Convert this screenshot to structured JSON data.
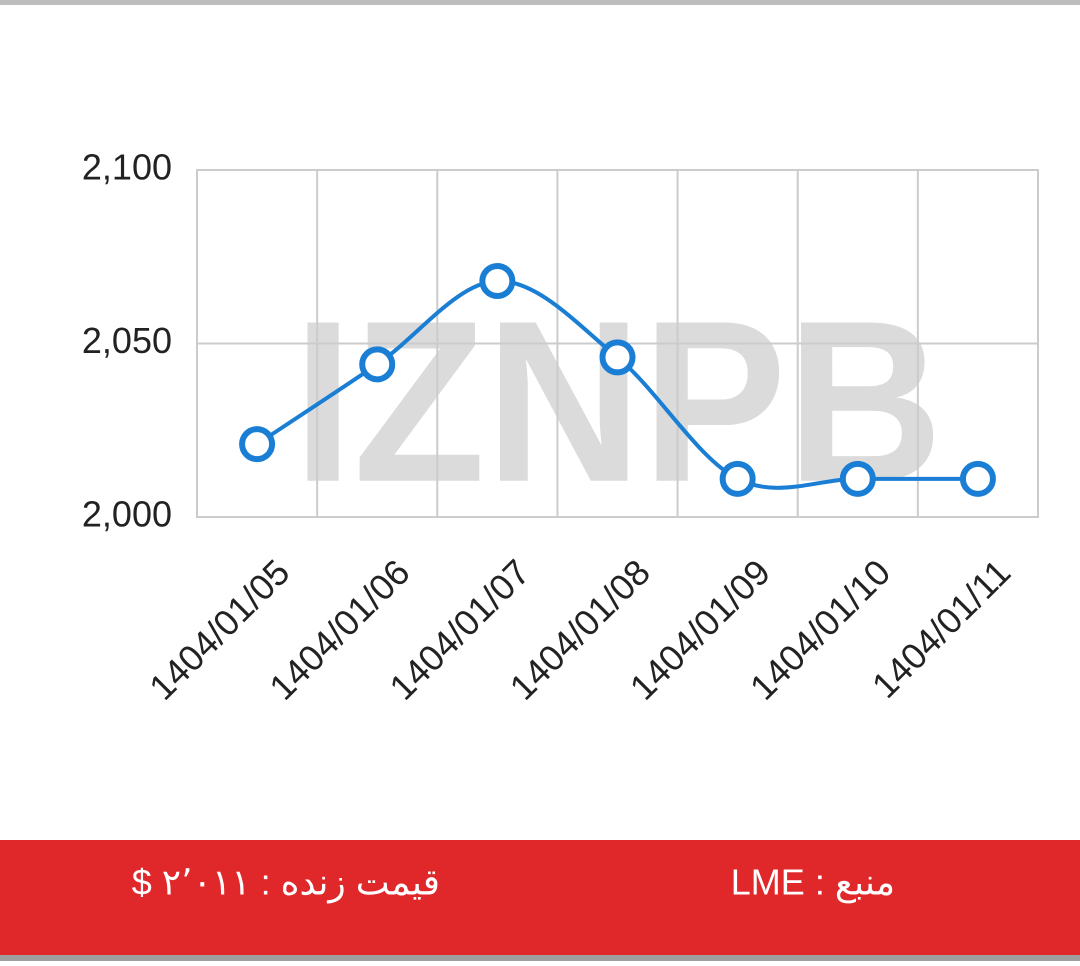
{
  "chart_data": {
    "type": "line",
    "categories": [
      "1404/01/05",
      "1404/01/06",
      "1404/01/07",
      "1404/01/08",
      "1404/01/09",
      "1404/01/10",
      "1404/01/11"
    ],
    "values": [
      2021,
      2044,
      2068,
      2046,
      2011,
      2011,
      2011
    ],
    "color": "#1a7fd4",
    "ylim": [
      2000,
      2100
    ],
    "yticks": [
      {
        "value": 2000,
        "label": "2,000"
      },
      {
        "value": 2050,
        "label": "2,050"
      },
      {
        "value": 2100,
        "label": "2,100"
      }
    ],
    "grid": true,
    "watermark": "IZNPB"
  },
  "footer": {
    "source": "منبع : LME",
    "live_price": "قیمت زنده : ۲٬۰۱۱ $"
  }
}
